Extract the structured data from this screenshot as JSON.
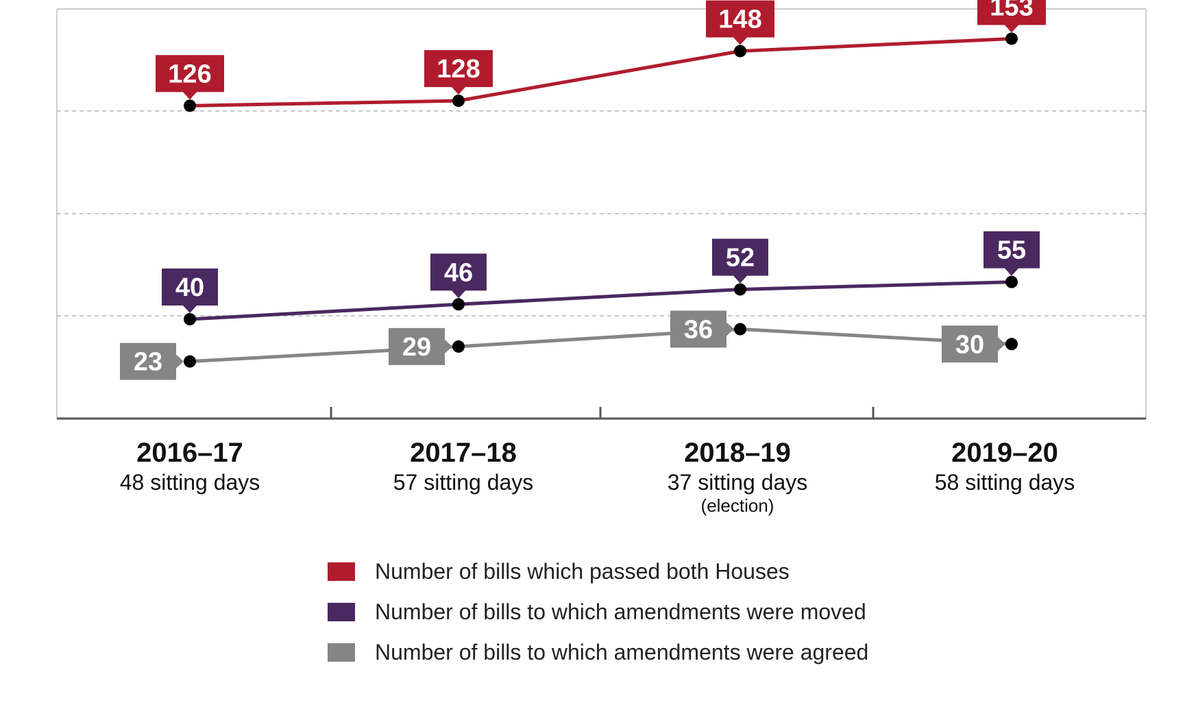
{
  "chart_data": {
    "type": "line",
    "categories": [
      "2016–17",
      "2017–18",
      "2018–19",
      "2019–20"
    ],
    "category_sublabels": [
      "48 sitting days",
      "57 sitting days",
      "37 sitting days",
      "58 sitting days"
    ],
    "category_notes": [
      "",
      "",
      "(election)",
      ""
    ],
    "series": [
      {
        "name": "Number of bills which passed both Houses",
        "values": [
          126,
          128,
          148,
          153
        ],
        "color": "#b01c2e"
      },
      {
        "name": "Number of bills to which amendments were moved",
        "values": [
          40,
          46,
          52,
          55
        ],
        "color": "#4a2860"
      },
      {
        "name": "Number of bills to which amendments were agreed",
        "values": [
          23,
          29,
          36,
          30
        ],
        "color": "#858585"
      }
    ],
    "ylim": [
      0,
      165
    ],
    "grid": true,
    "legend": "bottom"
  }
}
